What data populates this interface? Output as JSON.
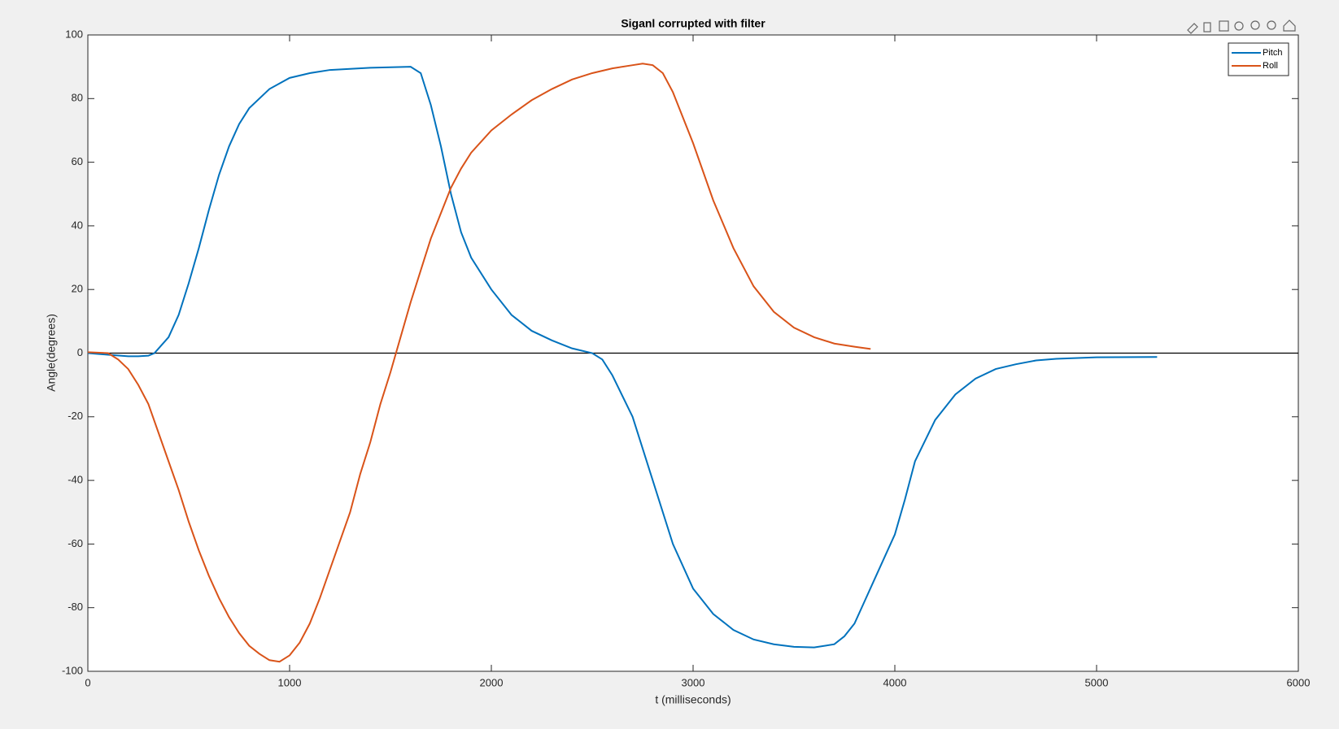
{
  "chart_data": {
    "type": "line",
    "title": "Siganl corrupted with filter",
    "xlabel": "t (milliseconds)",
    "ylabel": "Angle(degrees)",
    "xlim": [
      0,
      6000
    ],
    "xticks": [
      0,
      1000,
      2000,
      3000,
      4000,
      5000,
      6000
    ],
    "ylim": [
      -100,
      100
    ],
    "yticks": [
      -100,
      -80,
      -60,
      -40,
      -20,
      0,
      20,
      40,
      60,
      80,
      100
    ],
    "hline": 0,
    "legend": "top-right",
    "series": [
      {
        "name": "Pitch",
        "color": "#0072bd",
        "x": [
          0,
          100,
          200,
          250,
          300,
          330,
          400,
          450,
          500,
          550,
          600,
          650,
          700,
          750,
          800,
          900,
          1000,
          1100,
          1200,
          1400,
          1600,
          1650,
          1700,
          1750,
          1800,
          1850,
          1900,
          2000,
          2100,
          2200,
          2300,
          2400,
          2500,
          2550,
          2600,
          2700,
          2800,
          2900,
          3000,
          3100,
          3200,
          3300,
          3400,
          3500,
          3600,
          3700,
          3750,
          3800,
          3850,
          3900,
          4000,
          4050,
          4100,
          4200,
          4300,
          4400,
          4500,
          4600,
          4700,
          4800,
          5000,
          5300
        ],
        "values": [
          0,
          -0.5,
          -1,
          -1,
          -0.8,
          0,
          5,
          12,
          22,
          33,
          45,
          56,
          65,
          72,
          77,
          83,
          86.5,
          88,
          89,
          89.7,
          90,
          88,
          78,
          65,
          50,
          38,
          30,
          20,
          12,
          7,
          4,
          1.5,
          0,
          -2,
          -7,
          -20,
          -40,
          -60,
          -74,
          -82,
          -87,
          -90,
          -91.5,
          -92.3,
          -92.5,
          -91.5,
          -89,
          -85,
          -78,
          -71,
          -57,
          -46,
          -34,
          -21,
          -13,
          -8,
          -5,
          -3.5,
          -2.3,
          -1.8,
          -1.3,
          -1.2
        ]
      },
      {
        "name": "Roll",
        "color": "#d95319",
        "x": [
          0,
          100,
          150,
          200,
          250,
          300,
          350,
          400,
          450,
          500,
          550,
          600,
          650,
          700,
          750,
          800,
          850,
          900,
          950,
          1000,
          1050,
          1100,
          1150,
          1200,
          1300,
          1350,
          1400,
          1450,
          1500,
          1550,
          1600,
          1650,
          1700,
          1750,
          1800,
          1850,
          1900,
          2000,
          2100,
          2200,
          2300,
          2400,
          2500,
          2600,
          2700,
          2750,
          2800,
          2850,
          2900,
          3000,
          3100,
          3200,
          3300,
          3400,
          3500,
          3600,
          3700,
          3800,
          3880
        ],
        "values": [
          0.3,
          0,
          -2,
          -5,
          -10,
          -16,
          -25,
          -34,
          -43,
          -53,
          -62,
          -70,
          -77,
          -83,
          -88,
          -92,
          -94.5,
          -96.5,
          -97,
          -95,
          -91,
          -85,
          -77,
          -68,
          -50,
          -38,
          -28,
          -16,
          -6,
          5,
          16,
          26,
          36,
          44,
          52,
          58,
          63,
          70,
          75,
          79.5,
          83,
          86,
          88,
          89.5,
          90.5,
          91,
          90.5,
          88,
          82,
          66,
          48,
          33,
          21,
          13,
          8,
          5,
          3,
          2,
          1.3
        ]
      }
    ]
  }
}
